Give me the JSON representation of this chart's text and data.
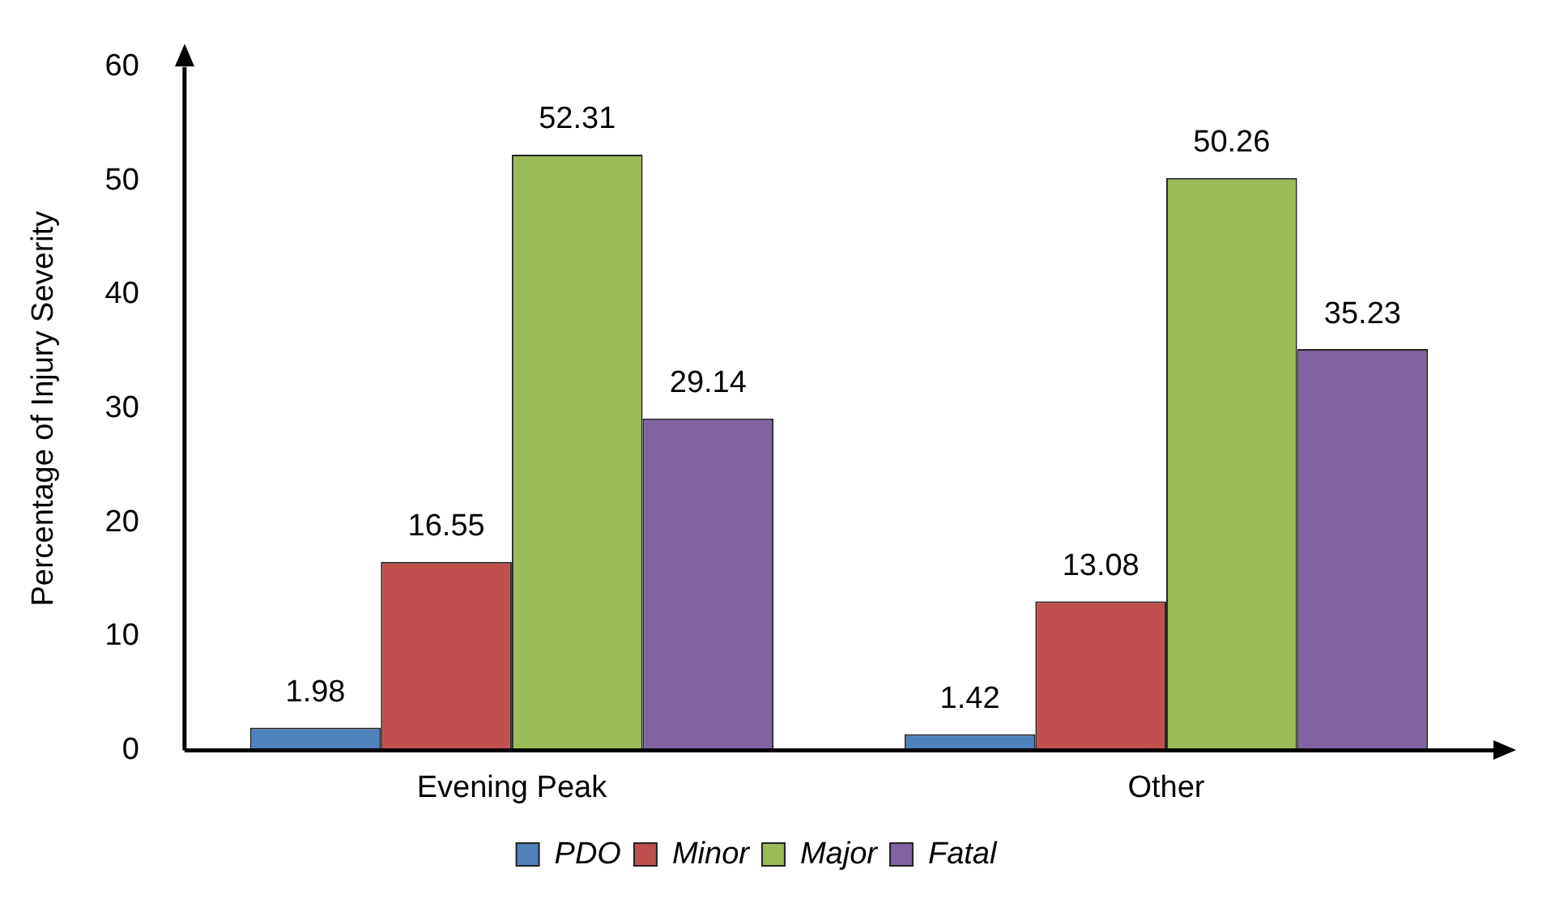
{
  "chart_data": {
    "type": "bar",
    "ylabel": "Percentage of Injury Severity",
    "categories": [
      "Evening Peak",
      "Other"
    ],
    "series": [
      {
        "name": "PDO",
        "color": "#4f81bd",
        "values": [
          1.98,
          1.42
        ]
      },
      {
        "name": "Minor",
        "color": "#c0504d",
        "values": [
          16.55,
          13.08
        ]
      },
      {
        "name": "Major",
        "color": "#9bbb59",
        "values": [
          52.31,
          50.26
        ]
      },
      {
        "name": "Fatal",
        "color": "#8064a2",
        "values": [
          29.14,
          35.23
        ]
      }
    ],
    "ylim": [
      0,
      60
    ],
    "yticks": [
      0,
      10,
      20,
      30,
      40,
      50,
      60
    ],
    "grid": false,
    "legend": "bottom",
    "data_labels": true
  }
}
